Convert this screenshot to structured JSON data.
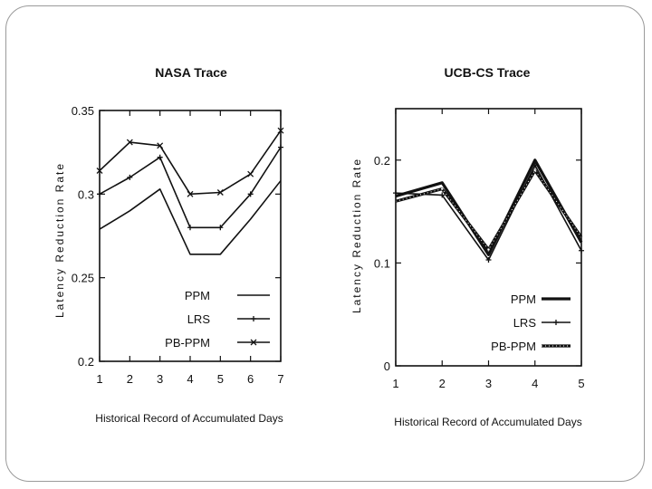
{
  "chart_data": [
    {
      "type": "line",
      "title": "NASA Trace",
      "xlabel": "Historical Record of Accumulated Days",
      "ylabel": "Latency Reduction Rate",
      "x": [
        1,
        2,
        3,
        4,
        5,
        6,
        7
      ],
      "xticks": [
        "1",
        "2",
        "3",
        "4",
        "5",
        "6",
        "7"
      ],
      "ylim": [
        0.2,
        0.35
      ],
      "yticks": [
        0.2,
        0.25,
        0.3,
        0.35
      ],
      "ytick_labels": [
        "0.2",
        "0.25",
        "0.3",
        "0.35"
      ],
      "legend_position": "bottom-right",
      "series": [
        {
          "name": "PPM",
          "values": [
            0.279,
            0.29,
            0.303,
            0.264,
            0.264,
            0.285,
            0.308
          ]
        },
        {
          "name": "LRS",
          "values": [
            0.3,
            0.31,
            0.322,
            0.28,
            0.28,
            0.3,
            0.328
          ]
        },
        {
          "name": "PB-PPM",
          "values": [
            0.314,
            0.331,
            0.329,
            0.3,
            0.301,
            0.312,
            0.338
          ]
        }
      ]
    },
    {
      "type": "line",
      "title": "UCB-CS Trace",
      "xlabel": "Historical Record of Accumulated Days",
      "ylabel": "Latency Reduction Rate",
      "x": [
        1,
        2,
        3,
        4,
        5
      ],
      "xticks": [
        "1",
        "2",
        "3",
        "4",
        "5"
      ],
      "ylim": [
        0,
        0.25
      ],
      "yticks": [
        0,
        0.1,
        0.2
      ],
      "ytick_labels": [
        "0",
        "0.1",
        "0.2"
      ],
      "legend_position": "bottom-right",
      "series": [
        {
          "name": "PPM",
          "values": [
            0.165,
            0.178,
            0.108,
            0.2,
            0.12
          ]
        },
        {
          "name": "LRS",
          "values": [
            0.168,
            0.166,
            0.103,
            0.195,
            0.112
          ]
        },
        {
          "name": "PB-PPM",
          "values": [
            0.16,
            0.172,
            0.113,
            0.19,
            0.125
          ]
        }
      ]
    }
  ]
}
